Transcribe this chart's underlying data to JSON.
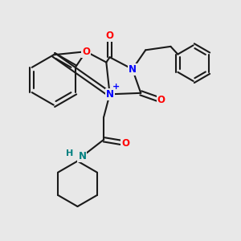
{
  "bg_color": "#e8e8e8",
  "bond_color": "#1a1a1a",
  "N_color": "#0000ff",
  "O_color": "#ff0000",
  "NH_color": "#008080",
  "line_width": 1.5,
  "font_size_atoms": 8.5,
  "fig_size": [
    3.0,
    3.0
  ],
  "dpi": 100,
  "xlim": [
    0,
    10
  ],
  "ylim": [
    0,
    10
  ]
}
